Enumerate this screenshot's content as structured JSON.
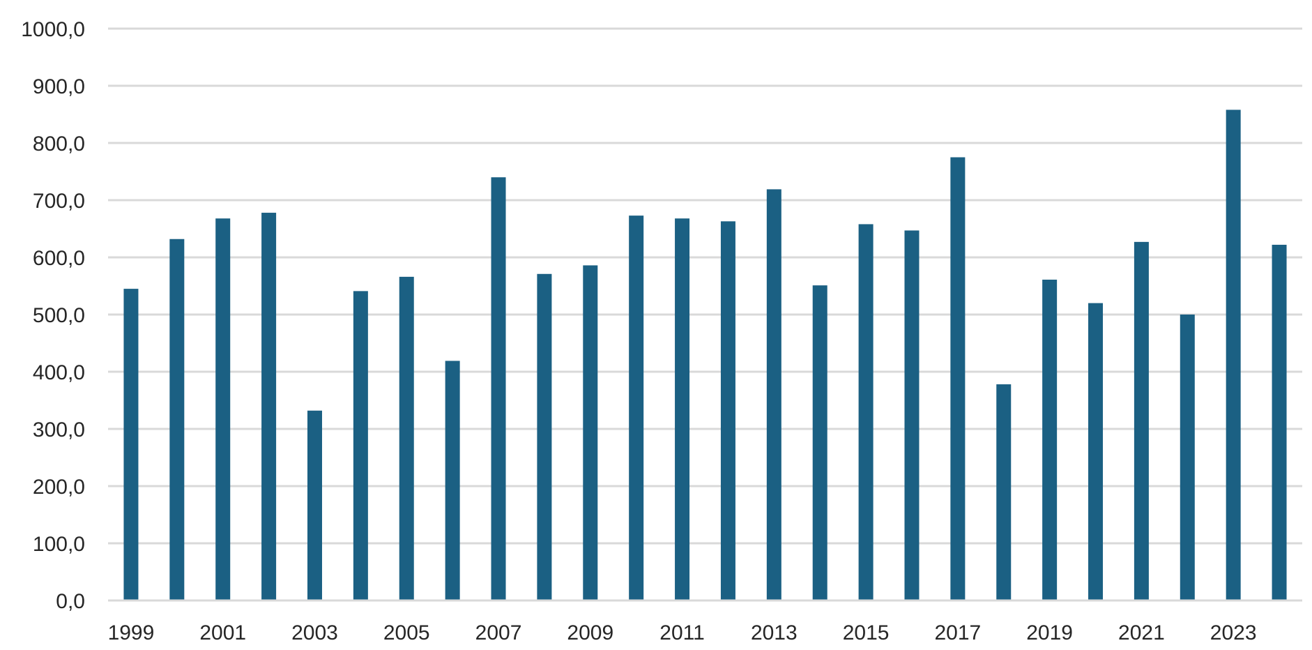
{
  "chart_data": {
    "type": "bar",
    "title": "",
    "xlabel": "",
    "ylabel": "",
    "ylim": [
      0,
      1000
    ],
    "yticks": [
      "0,0",
      "100,0",
      "200,0",
      "300,0",
      "400,0",
      "500,0",
      "600,0",
      "700,0",
      "800,0",
      "900,0",
      "1000,0"
    ],
    "categories": [
      "1999",
      "2000",
      "2001",
      "2002",
      "2003",
      "2004",
      "2005",
      "2006",
      "2007",
      "2008",
      "2009",
      "2010",
      "2011",
      "2012",
      "2013",
      "2014",
      "2015",
      "2016",
      "2017",
      "2018",
      "2019",
      "2020",
      "2021",
      "2022",
      "2023",
      "2024"
    ],
    "xtick_labels": [
      "1999",
      "2001",
      "2003",
      "2005",
      "2007",
      "2009",
      "2011",
      "2013",
      "2015",
      "2017",
      "2019",
      "2021",
      "2023"
    ],
    "values": [
      545,
      632,
      668,
      678,
      332,
      541,
      566,
      419,
      740,
      571,
      586,
      673,
      668,
      663,
      719,
      551,
      658,
      647,
      775,
      378,
      561,
      520,
      627,
      500,
      858,
      622
    ],
    "grid": true,
    "legend": "none",
    "bar_color": "#1b6083",
    "grid_color": "#d9d9d9",
    "text_color": "#262626"
  }
}
